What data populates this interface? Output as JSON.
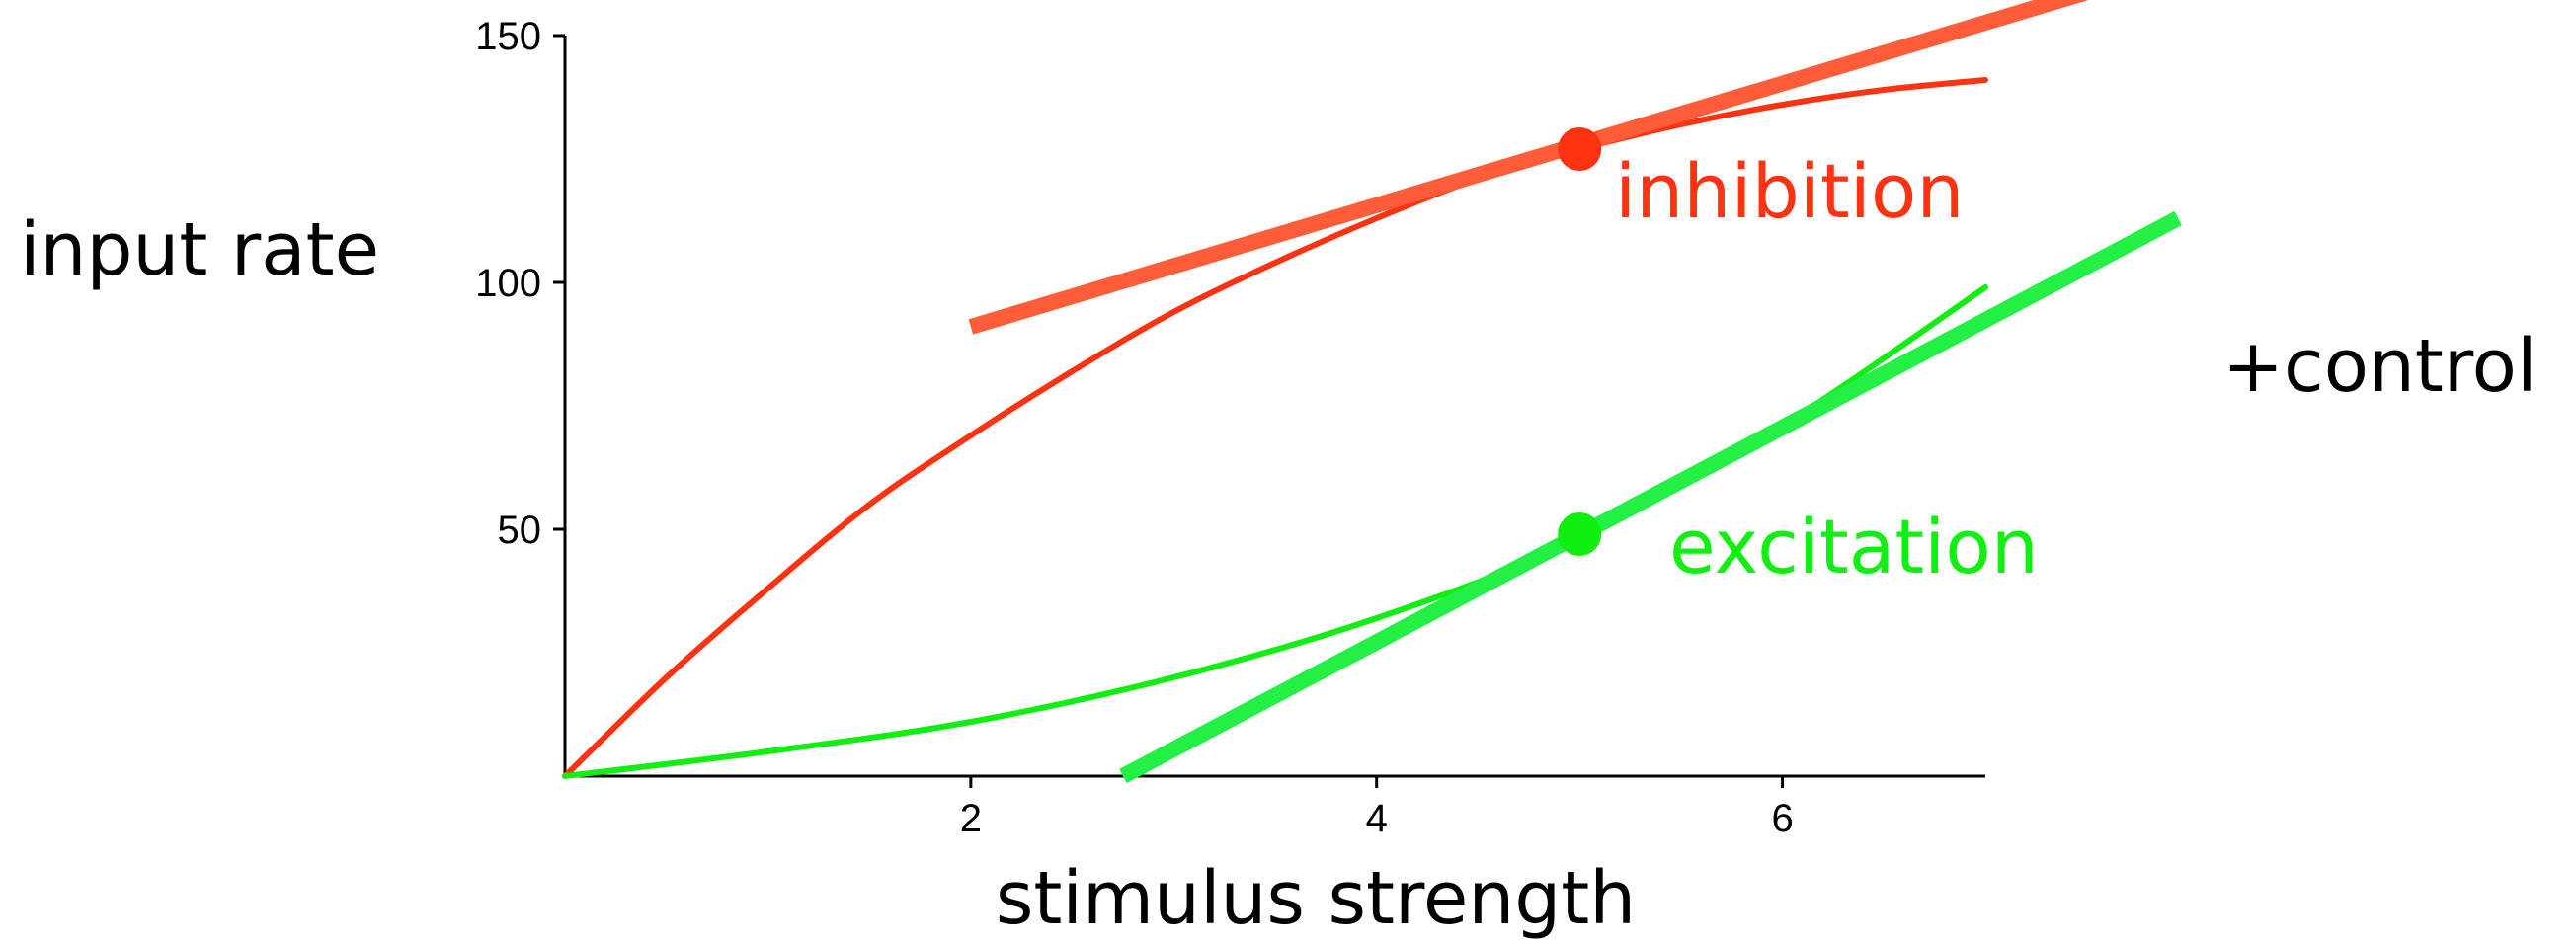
{
  "chart_data": {
    "type": "line",
    "xlabel": "stimulus strength",
    "ylabel": "input rate",
    "xlim": [
      0,
      7
    ],
    "ylim": [
      0,
      150
    ],
    "xticks": [
      2,
      4,
      6
    ],
    "yticks": [
      50,
      100,
      150
    ],
    "grid": false,
    "annotation": "+control",
    "colors": {
      "inhibition": "#ff3311",
      "inhibition_tangent": "#ff5c3a",
      "excitation": "#11ee11",
      "excitation_tangent": "#22f044"
    },
    "series": [
      {
        "name": "inhibition",
        "kind": "curve",
        "x": [
          0,
          0.5,
          1,
          1.5,
          2,
          2.5,
          3,
          3.5,
          4,
          4.5,
          5,
          5.5,
          6,
          6.5,
          7
        ],
        "y": [
          0,
          20,
          38,
          55,
          69,
          82,
          94,
          104,
          113,
          121,
          127,
          132,
          136,
          139,
          141
        ]
      },
      {
        "name": "inhibition",
        "kind": "tangent",
        "x": [
          2,
          7.6
        ],
        "y": [
          91,
          160
        ]
      },
      {
        "name": "excitation",
        "kind": "curve",
        "x": [
          0,
          1,
          2,
          3,
          4,
          5,
          6,
          7
        ],
        "y": [
          0,
          5,
          11,
          20,
          32,
          48,
          71,
          99
        ]
      },
      {
        "name": "excitation",
        "kind": "tangent",
        "x": [
          2.75,
          7.95
        ],
        "y": [
          0,
          113
        ]
      }
    ],
    "points": [
      {
        "name": "inhibition",
        "x": 5,
        "y": 127
      },
      {
        "name": "excitation",
        "x": 5,
        "y": 49
      }
    ]
  }
}
